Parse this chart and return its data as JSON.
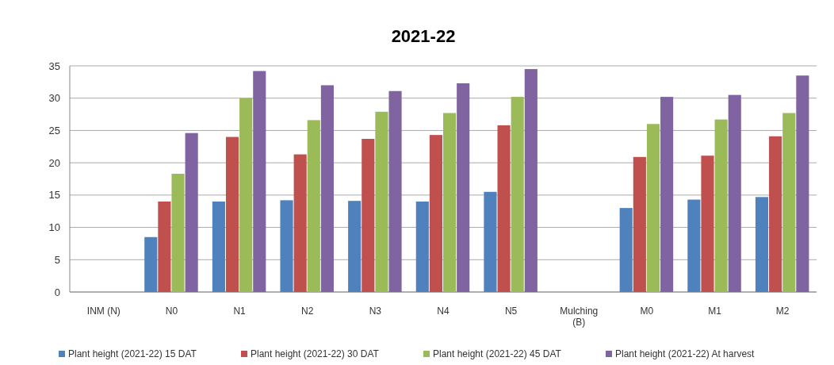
{
  "chart_data": {
    "type": "bar",
    "title": "2021-22",
    "categories": [
      "INM (N)",
      "N0",
      "N1",
      "N2",
      "N3",
      "N4",
      "N5",
      "Mulching (B)",
      "M0",
      "M1",
      "M2"
    ],
    "series": [
      {
        "name": "Plant height (2021-22) 15 DAT",
        "color": "#4f81bd",
        "values": [
          null,
          8.5,
          14,
          14.2,
          14.1,
          14,
          15.5,
          null,
          13,
          14.3,
          14.7
        ]
      },
      {
        "name": "Plant height (2021-22) 30 DAT",
        "color": "#c0504d",
        "values": [
          null,
          14,
          24,
          21.3,
          23.7,
          24.3,
          25.8,
          null,
          20.9,
          21.1,
          24.1
        ]
      },
      {
        "name": "Plant height (2021-22) 45 DAT",
        "color": "#9bbb59",
        "values": [
          null,
          18.3,
          30,
          26.6,
          27.9,
          27.7,
          30.2,
          null,
          26,
          26.7,
          27.7
        ]
      },
      {
        "name": "Plant height (2021-22) At harvest",
        "color": "#8064a2",
        "values": [
          null,
          24.6,
          34.2,
          32,
          31.1,
          32.3,
          34.5,
          null,
          30.2,
          30.5,
          33.5
        ]
      }
    ],
    "ylim": [
      0,
      35
    ],
    "yticks": [
      0,
      5,
      10,
      15,
      20,
      25,
      30,
      35
    ],
    "grid": "y",
    "legend": "bottom"
  }
}
